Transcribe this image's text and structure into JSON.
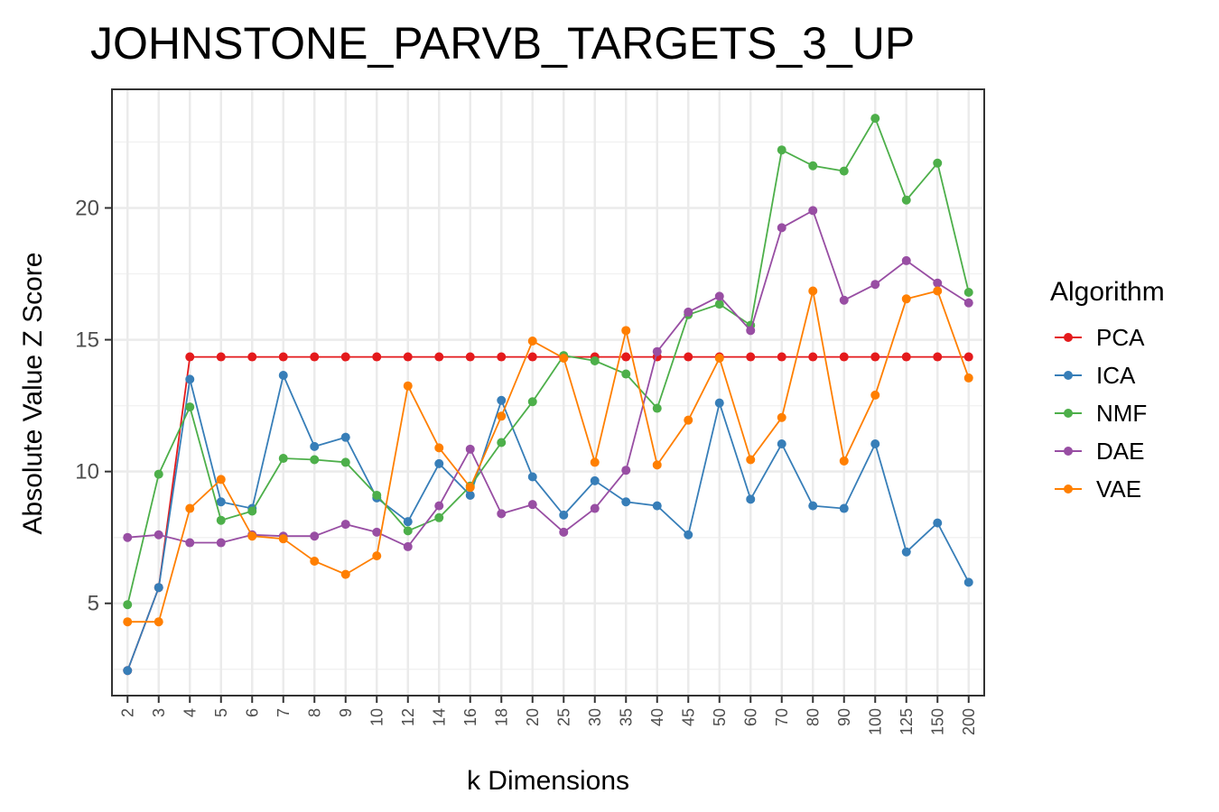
{
  "chart_data": {
    "type": "line",
    "title": "JOHNSTONE_PARVB_TARGETS_3_UP",
    "xlabel": "k Dimensions",
    "ylabel": "Absolute Value Z Score",
    "categories": [
      "2",
      "3",
      "4",
      "5",
      "6",
      "7",
      "8",
      "9",
      "10",
      "12",
      "14",
      "16",
      "18",
      "20",
      "25",
      "30",
      "35",
      "40",
      "45",
      "50",
      "60",
      "70",
      "80",
      "90",
      "100",
      "125",
      "150",
      "200"
    ],
    "ylim": [
      1.5,
      24.5
    ],
    "yticks": [
      5,
      10,
      15,
      20
    ],
    "grid": true,
    "legend": {
      "title": "Algorithm",
      "position": "right"
    },
    "series": [
      {
        "name": "PCA",
        "color": "#E41A1C",
        "values": [
          2.45,
          5.6,
          14.35,
          14.35,
          14.35,
          14.35,
          14.35,
          14.35,
          14.35,
          14.35,
          14.35,
          14.35,
          14.35,
          14.35,
          14.35,
          14.35,
          14.35,
          14.35,
          14.35,
          14.35,
          14.35,
          14.35,
          14.35,
          14.35,
          14.35,
          14.35,
          14.35,
          14.35
        ]
      },
      {
        "name": "ICA",
        "color": "#377EB8",
        "values": [
          2.45,
          5.6,
          13.5,
          8.85,
          8.6,
          13.65,
          10.95,
          11.3,
          9.0,
          8.1,
          10.3,
          9.1,
          12.7,
          9.8,
          8.35,
          9.65,
          8.85,
          8.7,
          7.6,
          12.6,
          8.95,
          11.05,
          8.7,
          8.6,
          11.05,
          6.95,
          8.05,
          5.8
        ]
      },
      {
        "name": "NMF",
        "color": "#4DAF4A",
        "values": [
          4.95,
          9.9,
          12.45,
          8.15,
          8.5,
          10.5,
          10.45,
          10.35,
          9.1,
          7.75,
          8.25,
          9.45,
          11.1,
          12.65,
          14.4,
          14.2,
          13.7,
          12.4,
          15.95,
          16.35,
          15.55,
          22.2,
          21.6,
          21.4,
          23.4,
          20.3,
          21.7,
          16.8
        ]
      },
      {
        "name": "DAE",
        "color": "#984EA3",
        "values": [
          7.5,
          7.6,
          7.3,
          7.3,
          7.6,
          7.55,
          7.55,
          8.0,
          7.7,
          7.15,
          8.7,
          10.85,
          8.4,
          8.75,
          7.7,
          8.6,
          10.05,
          14.55,
          16.05,
          16.65,
          15.35,
          19.25,
          19.9,
          16.5,
          17.1,
          18.0,
          17.15,
          16.4
        ]
      },
      {
        "name": "VAE",
        "color": "#FF7F00",
        "values": [
          4.3,
          4.3,
          8.6,
          9.7,
          7.55,
          7.45,
          6.6,
          6.1,
          6.8,
          13.25,
          10.9,
          9.4,
          12.1,
          14.95,
          14.3,
          10.35,
          15.35,
          10.25,
          11.95,
          14.3,
          10.45,
          12.05,
          16.85,
          10.4,
          12.9,
          16.55,
          16.85,
          13.55
        ]
      }
    ]
  }
}
